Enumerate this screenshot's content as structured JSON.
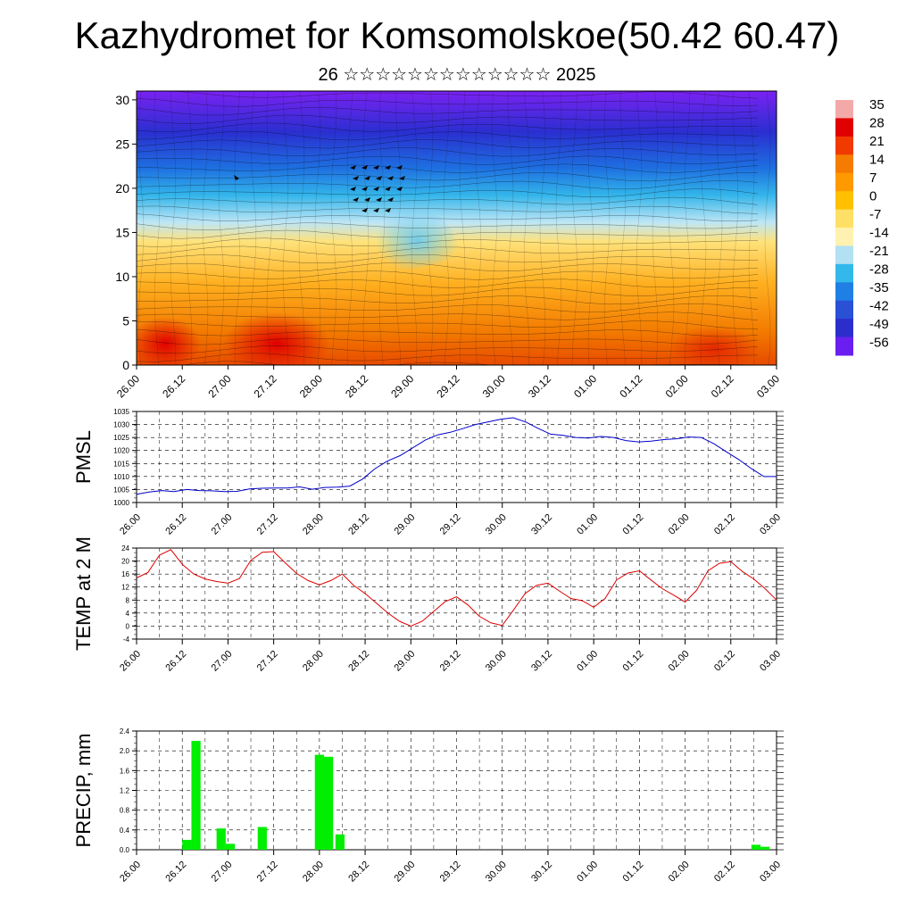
{
  "title": "Kazhydromet for Komsomolskoe(50.42 60.47)",
  "subtitle": "26 ☆☆☆☆☆☆☆☆☆☆☆☆☆ 2025",
  "chart_data": [
    {
      "type": "heatmap",
      "name": "cross-section",
      "y_ticks": [
        0,
        5,
        10,
        15,
        20,
        25,
        30
      ],
      "ylim": [
        0,
        31
      ],
      "x_ticks": [
        "26.00",
        "26.12",
        "27.00",
        "27.12",
        "28.00",
        "28.12",
        "29.00",
        "29.12",
        "30.00",
        "30.12",
        "01.00",
        "01.12",
        "02.00",
        "02.12",
        "03.00"
      ],
      "colorbar_labels": [
        "35",
        "28",
        "21",
        "14",
        "7",
        "0",
        "-7",
        "-14",
        "-21",
        "-28",
        "-35",
        "-42",
        "-49",
        "-56"
      ],
      "colorbar_colors": [
        "#f4a9a9",
        "#e00000",
        "#f03a00",
        "#f57c00",
        "#ff9900",
        "#ffc000",
        "#ffe066",
        "#fff2b0",
        "#b3e0f2",
        "#33b8ec",
        "#1f7fe5",
        "#2a50d6",
        "#2c2ecc",
        "#6a1ff0"
      ]
    },
    {
      "type": "line",
      "name": "pmsl",
      "ylabel": "PMSL",
      "ylim": [
        1000,
        1035
      ],
      "y_ticks": [
        1000,
        1005,
        1010,
        1015,
        1020,
        1025,
        1030,
        1035
      ],
      "x_ticks": [
        "26.00",
        "26.12",
        "27.00",
        "27.12",
        "28.00",
        "28.12",
        "29.00",
        "29.12",
        "30.00",
        "30.12",
        "01.00",
        "01.12",
        "02.00",
        "02.12",
        "03.00"
      ],
      "color": "#0000cc",
      "values": [
        1003.2,
        1004,
        1004.6,
        1004.2,
        1005,
        1004.6,
        1004.5,
        1004.2,
        1004.3,
        1005.2,
        1005.5,
        1005.6,
        1005.6,
        1006,
        1005.1,
        1005.8,
        1005.9,
        1006.3,
        1009,
        1013,
        1016,
        1018,
        1021,
        1024,
        1026,
        1027,
        1028.4,
        1030,
        1031,
        1032,
        1032.6,
        1031,
        1028.5,
        1026.3,
        1025.8,
        1025,
        1024.8,
        1025.4,
        1025,
        1023.8,
        1023.3,
        1023.6,
        1024.2,
        1024.5,
        1025.2,
        1025,
        1022.6,
        1019.5,
        1016.5,
        1013,
        1010,
        1010
      ]
    },
    {
      "type": "line",
      "name": "temp-2m",
      "ylabel": "TEMP at 2 M",
      "ylim": [
        -4,
        24
      ],
      "y_ticks": [
        -4,
        0,
        4,
        8,
        12,
        16,
        20,
        24
      ],
      "x_ticks": [
        "26.00",
        "26.12",
        "27.00",
        "27.12",
        "28.00",
        "28.12",
        "29.00",
        "29.12",
        "30.00",
        "30.12",
        "01.00",
        "01.12",
        "02.00",
        "02.12",
        "03.00"
      ],
      "color": "#dd0000",
      "values": [
        14.8,
        16.5,
        21.8,
        23.5,
        19,
        16,
        14.5,
        13.7,
        13.2,
        14.6,
        20.2,
        22.7,
        22.9,
        19.5,
        16.2,
        14,
        12.7,
        14,
        16,
        12.5,
        10,
        7,
        4,
        1.5,
        0,
        1.5,
        4.5,
        7.5,
        9,
        6.5,
        3,
        1,
        0.2,
        5,
        10,
        12.5,
        13.2,
        10.8,
        8.5,
        7.8,
        5.8,
        8.5,
        14.2,
        16.3,
        17,
        14.2,
        11.5,
        9.5,
        7.4,
        11,
        17,
        19.3,
        19.8,
        16.8,
        14.5,
        11.5,
        8
      ]
    },
    {
      "type": "bar",
      "name": "precip",
      "ylabel": "PRECIP, mm",
      "ylim": [
        0,
        2.4
      ],
      "y_ticks": [
        "0.0",
        "0.4",
        "0.8",
        "1.2",
        "1.6",
        "2.0",
        "2.4"
      ],
      "x_ticks": [
        "26.00",
        "26.12",
        "27.00",
        "27.12",
        "28.00",
        "28.12",
        "29.00",
        "29.12",
        "30.00",
        "30.12",
        "01.00",
        "01.12",
        "02.00",
        "02.12",
        "03.00"
      ],
      "color": "#00ee00",
      "bars": [
        {
          "t": 1.1,
          "v": 0.2
        },
        {
          "t": 1.3,
          "v": 2.2
        },
        {
          "t": 1.85,
          "v": 0.43
        },
        {
          "t": 2.05,
          "v": 0.12
        },
        {
          "t": 2.75,
          "v": 0.46
        },
        {
          "t": 4.0,
          "v": 1.92
        },
        {
          "t": 4.2,
          "v": 1.88
        },
        {
          "t": 4.45,
          "v": 0.31
        },
        {
          "t": 13.55,
          "v": 0.1
        },
        {
          "t": 13.75,
          "v": 0.06
        }
      ]
    }
  ]
}
